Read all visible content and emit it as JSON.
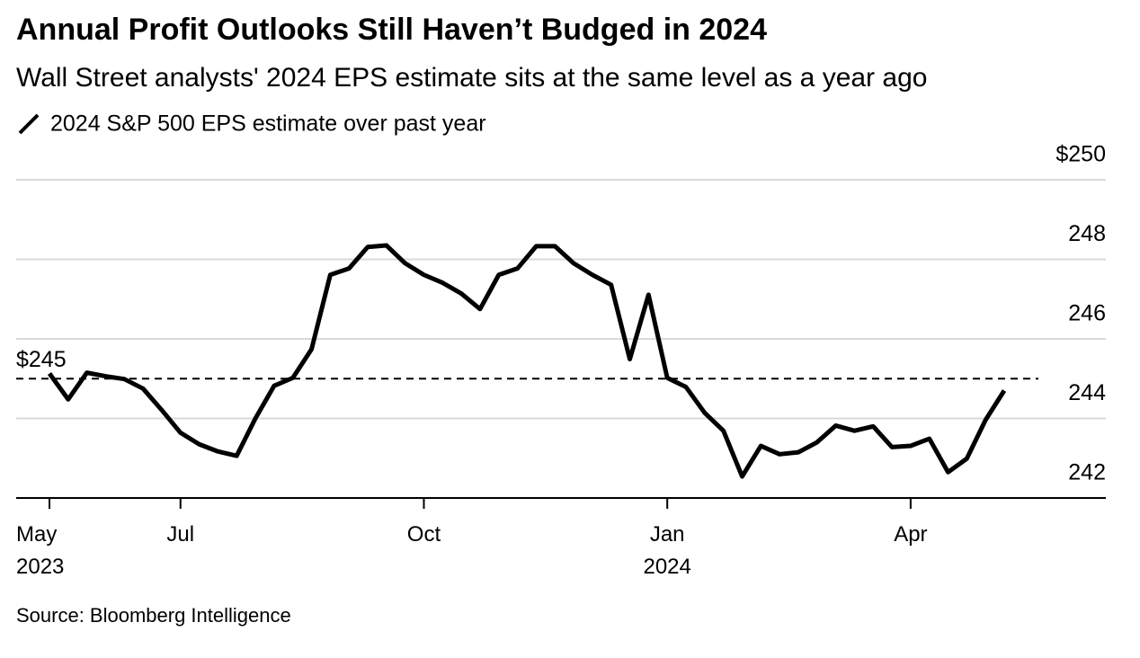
{
  "chart_data": {
    "type": "line",
    "title": "Annual Profit Outlooks Still Haven’t Budged in 2024",
    "subtitle": "Wall Street analysts' 2024 EPS estimate sits at the same level as a year ago",
    "source": "Source: Bloomberg Intelligence",
    "categories": [
      "May 2023",
      null,
      null,
      null,
      null,
      null,
      null,
      "Jul",
      null,
      null,
      null,
      null,
      null,
      null,
      null,
      null,
      null,
      null,
      null,
      null,
      "Oct",
      null,
      null,
      null,
      null,
      null,
      null,
      null,
      null,
      null,
      null,
      null,
      null,
      "Jan 2024",
      null,
      null,
      null,
      null,
      null,
      null,
      null,
      null,
      null,
      null,
      null,
      null,
      "Apr",
      null,
      null,
      null,
      null,
      null
    ],
    "series": [
      {
        "name": "2024 S&P 500 EPS estimate over past year",
        "color": "#000000",
        "values": [
          245.13,
          244.48,
          245.15,
          245.06,
          244.99,
          244.75,
          244.21,
          243.64,
          243.35,
          243.17,
          243.06,
          244.0,
          244.82,
          245.02,
          245.74,
          247.61,
          247.77,
          248.31,
          248.35,
          247.9,
          247.61,
          247.41,
          247.14,
          246.75,
          247.61,
          247.77,
          248.33,
          248.33,
          247.9,
          247.61,
          247.36,
          245.49,
          247.11,
          245.02,
          244.79,
          244.14,
          243.69,
          242.54,
          243.31,
          243.1,
          243.15,
          243.4,
          243.82,
          243.69,
          243.8,
          243.28,
          243.31,
          243.49,
          242.65,
          242.99,
          243.96,
          244.7
        ]
      }
    ],
    "reference": {
      "value": 245,
      "label": "$245"
    },
    "ylim": [
      242,
      250
    ],
    "yticks": [
      242,
      244,
      246,
      248,
      {
        "value": 250,
        "label": "$250"
      }
    ],
    "grid": true
  }
}
